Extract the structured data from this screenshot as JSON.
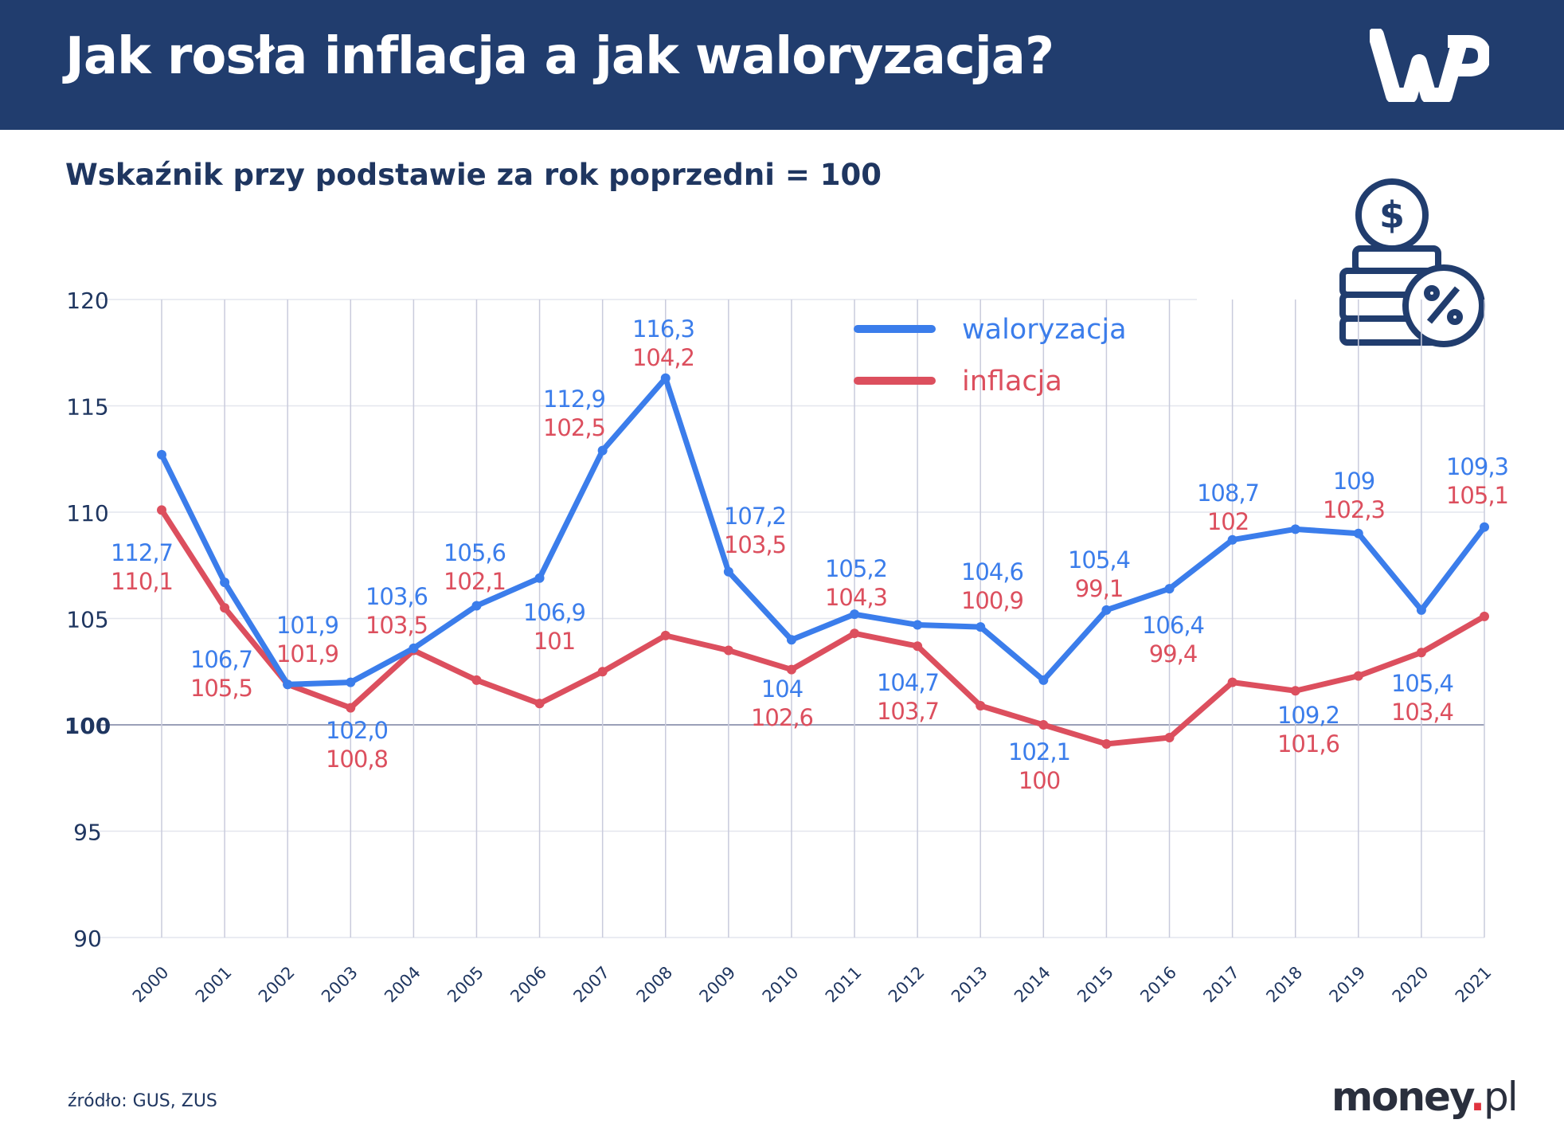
{
  "header": {
    "title": "Jak rosła inflacja a jak waloryzacja?",
    "logo": "WP"
  },
  "subtitle": "Wskaźnik przy podstawie za rok poprzedni = 100",
  "footer": {
    "source": "źródło: GUS, ZUS",
    "brand_name": "money",
    "brand_dot": ".",
    "brand_tld": "pl"
  },
  "icons": {
    "top_right": "coins-dollar-percent-icon"
  },
  "colors": {
    "header": "#213d6e",
    "waloryzacja": "#3b7deb",
    "inflacja": "#dc4f5e",
    "axis_text": "#1f3660"
  },
  "chart_data": {
    "type": "line",
    "title": "",
    "xlabel": "",
    "ylabel": "",
    "ylim": [
      90,
      120
    ],
    "yticks": [
      90,
      95,
      100,
      105,
      110,
      115,
      120
    ],
    "grid": true,
    "legend_position": "top-right",
    "categories": [
      "2000",
      "2001",
      "2002",
      "2003",
      "2004",
      "2005",
      "2006",
      "2007",
      "2008",
      "2009",
      "2010",
      "2011",
      "2012",
      "2013",
      "2014",
      "2015",
      "2016",
      "2017",
      "2018",
      "2019",
      "2020",
      "2021"
    ],
    "series": [
      {
        "name": "waloryzacja",
        "color": "#3b7deb",
        "values": [
          112.7,
          106.7,
          101.9,
          102.0,
          103.6,
          105.6,
          106.9,
          112.9,
          116.3,
          107.2,
          104,
          105.2,
          104.7,
          104.6,
          102.1,
          105.4,
          106.4,
          108.7,
          109.2,
          109,
          105.4,
          109.3
        ],
        "labels": [
          "112,7",
          "106,7",
          "101,9",
          "102,0",
          "103,6",
          "105,6",
          "106,9",
          "112,9",
          "116,3",
          "107,2",
          "104",
          "105,2",
          "104,7",
          "104,6",
          "102,1",
          "105,4",
          "106,4",
          "108,7",
          "109,2",
          "109",
          "105,4",
          "109,3"
        ]
      },
      {
        "name": "inflacja",
        "color": "#dc4f5e",
        "values": [
          110.1,
          105.5,
          101.9,
          100.8,
          103.5,
          102.1,
          101,
          102.5,
          104.2,
          103.5,
          102.6,
          104.3,
          103.7,
          100.9,
          100,
          99.1,
          99.4,
          102,
          101.6,
          102.3,
          103.4,
          105.1
        ],
        "labels": [
          "110,1",
          "105,5",
          "101,9",
          "100,8",
          "103,5",
          "102,1",
          "101",
          "102,5",
          "104,2",
          "103,5",
          "102,6",
          "104,3",
          "103,7",
          "100,9",
          "100",
          "99,1",
          "99,4",
          "102",
          "101,6",
          "102,3",
          "103,4",
          "105,1"
        ]
      }
    ]
  }
}
